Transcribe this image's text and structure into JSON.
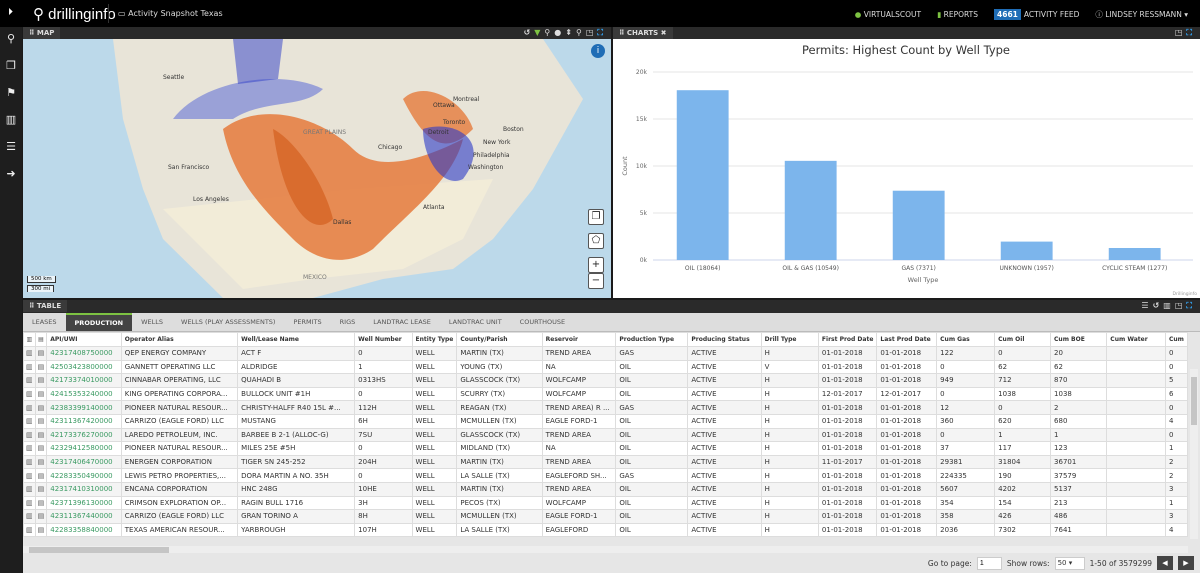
{
  "app": {
    "logo": "drillinginfo",
    "page": "Activity Snapshot Texas"
  },
  "topnav": {
    "virtualscout": "VIRTUALSCOUT",
    "reports": "REPORTS",
    "feed_count": "4661",
    "feed": "ACTIVITY FEED",
    "user": "LINDSEY RESSMANN"
  },
  "sidebar": [
    "search-icon",
    "layers-icon",
    "location-icon",
    "chart-icon",
    "database-icon",
    "logout-icon"
  ],
  "map": {
    "title": "MAP",
    "scale_km": "500 km",
    "scale_mi": "300 mi",
    "labels": [
      "Seattle",
      "Montreal",
      "Ottawa",
      "Toronto",
      "Boston",
      "Detroit",
      "Chicago",
      "New York",
      "Philadelphia",
      "Washington",
      "San Francisco",
      "Los Angeles",
      "GREAT PLAINS",
      "MEXICO",
      "Atlanta",
      "Dallas"
    ]
  },
  "charts": {
    "title": "CHARTS"
  },
  "chart_data": {
    "type": "bar",
    "title": "Permits: Highest Count by Well Type",
    "xlabel": "Well Type",
    "ylabel": "Count",
    "ylim": [
      0,
      20000
    ],
    "yticks": [
      "0k",
      "5k",
      "10k",
      "15k",
      "20k"
    ],
    "categories": [
      "OIL (18064)",
      "OIL & GAS (10549)",
      "GAS (7371)",
      "UNKNOWN (1957)",
      "CYCLIC STEAM (1277)"
    ],
    "values": [
      18064,
      10549,
      7371,
      1957,
      1277
    ],
    "color": "#7cb5ec",
    "credit": "Drillinginfo",
    "grid": true
  },
  "table": {
    "title": "TABLE",
    "tabs": [
      "LEASES",
      "PRODUCTION",
      "WELLS",
      "WELLS (PLAY ASSESSMENTS)",
      "PERMITS",
      "RIGS",
      "LANDTRAC LEASE",
      "LANDTRAC UNIT",
      "COURTHOUSE"
    ],
    "active_tab": "PRODUCTION",
    "columns": [
      "API/UWI",
      "Operator Alias",
      "Well/Lease Name",
      "Well Number",
      "Entity Type",
      "County/Parish",
      "Reservoir",
      "Production Type",
      "Producing Status",
      "Drill Type",
      "First Prod Date",
      "Last Prod Date",
      "Cum Gas",
      "Cum Oil",
      "Cum BOE",
      "Cum Water",
      "Cum"
    ],
    "rows": [
      [
        "42317408750000",
        "QEP ENERGY COMPANY",
        "ACT F",
        "0",
        "WELL",
        "MARTIN (TX)",
        "TREND AREA",
        "GAS",
        "ACTIVE",
        "H",
        "01-01-2018",
        "01-01-2018",
        "122",
        "0",
        "20",
        "",
        "0"
      ],
      [
        "42503423800000",
        "GANNETT OPERATING LLC",
        "ALDRIDGE",
        "1",
        "WELL",
        "YOUNG (TX)",
        "NA",
        "OIL",
        "ACTIVE",
        "V",
        "01-01-2018",
        "01-01-2018",
        "0",
        "62",
        "62",
        "",
        "0"
      ],
      [
        "42173374010000",
        "CINNABAR OPERATING, LLC",
        "QUAHADI B",
        "0313HS",
        "WELL",
        "GLASSCOCK (TX)",
        "WOLFCAMP",
        "OIL",
        "ACTIVE",
        "H",
        "01-01-2018",
        "01-01-2018",
        "949",
        "712",
        "870",
        "",
        "5"
      ],
      [
        "42415353240000",
        "KING OPERATING CORPORA...",
        "BULLOCK UNIT #1H",
        "0",
        "WELL",
        "SCURRY (TX)",
        "WOLFCAMP",
        "OIL",
        "ACTIVE",
        "H",
        "12-01-2017",
        "12-01-2017",
        "0",
        "1038",
        "1038",
        "",
        "6"
      ],
      [
        "42383399140000",
        "PIONEER NATURAL RESOUR...",
        "CHRISTY-HALFF R40 15L #...",
        "112H",
        "WELL",
        "REAGAN (TX)",
        "TREND AREA) R ...",
        "GAS",
        "ACTIVE",
        "H",
        "01-01-2018",
        "01-01-2018",
        "12",
        "0",
        "2",
        "",
        "0"
      ],
      [
        "42311367420000",
        "CARRIZO (EAGLE FORD) LLC",
        "MUSTANG",
        "6H",
        "WELL",
        "MCMULLEN (TX)",
        "EAGLE FORD-1",
        "OIL",
        "ACTIVE",
        "H",
        "01-01-2018",
        "01-01-2018",
        "360",
        "620",
        "680",
        "",
        "4"
      ],
      [
        "42173376270000",
        "LAREDO PETROLEUM, INC.",
        "BARBEE B 2-1 (ALLOC-G)",
        "7SU",
        "WELL",
        "GLASSCOCK (TX)",
        "TREND AREA",
        "OIL",
        "ACTIVE",
        "H",
        "01-01-2018",
        "01-01-2018",
        "0",
        "1",
        "1",
        "",
        "0"
      ],
      [
        "42329412580000",
        "PIONEER NATURAL RESOUR...",
        "MILES 25E #5H",
        "0",
        "WELL",
        "MIDLAND (TX)",
        "NA",
        "OIL",
        "ACTIVE",
        "H",
        "01-01-2018",
        "01-01-2018",
        "37",
        "117",
        "123",
        "",
        "1"
      ],
      [
        "42317406470000",
        "ENERGEN CORPORATION",
        "TIGER SN 245-252",
        "204H",
        "WELL",
        "MARTIN (TX)",
        "TREND AREA",
        "OIL",
        "ACTIVE",
        "H",
        "11-01-2017",
        "01-01-2018",
        "29381",
        "31804",
        "36701",
        "",
        "2"
      ],
      [
        "42283350490000",
        "LEWIS PETRO PROPERTIES,...",
        "DORA MARTIN A NO. 35H",
        "0",
        "WELL",
        "LA SALLE (TX)",
        "EAGLEFORD SH...",
        "GAS",
        "ACTIVE",
        "H",
        "01-01-2018",
        "01-01-2018",
        "224335",
        "190",
        "37579",
        "",
        "2"
      ],
      [
        "42317410310000",
        "ENCANA CORPORATION",
        "HNC 248G",
        "10HE",
        "WELL",
        "MARTIN (TX)",
        "TREND AREA",
        "OIL",
        "ACTIVE",
        "H",
        "01-01-2018",
        "01-01-2018",
        "5607",
        "4202",
        "5137",
        "",
        "3"
      ],
      [
        "42371396130000",
        "CRIMSON EXPLORATION OP...",
        "RAGIN BULL 1716",
        "3H",
        "WELL",
        "PECOS (TX)",
        "WOLFCAMP",
        "OIL",
        "ACTIVE",
        "H",
        "01-01-2018",
        "01-01-2018",
        "354",
        "154",
        "213",
        "",
        "1"
      ],
      [
        "42311367440000",
        "CARRIZO (EAGLE FORD) LLC",
        "GRAN TORINO A",
        "8H",
        "WELL",
        "MCMULLEN (TX)",
        "EAGLE FORD-1",
        "OIL",
        "ACTIVE",
        "H",
        "01-01-2018",
        "01-01-2018",
        "358",
        "426",
        "486",
        "",
        "3"
      ],
      [
        "42283358840000",
        "TEXAS AMERICAN RESOUR...",
        "YARBROUGH",
        "107H",
        "WELL",
        "LA SALLE (TX)",
        "EAGLEFORD",
        "OIL",
        "ACTIVE",
        "H",
        "01-01-2018",
        "01-01-2018",
        "2036",
        "7302",
        "7641",
        "",
        "4"
      ]
    ]
  },
  "pager": {
    "goto_label": "Go to page:",
    "page": "1",
    "rows_label": "Show rows:",
    "rows": "50",
    "range": "1-50 of 3579299"
  }
}
